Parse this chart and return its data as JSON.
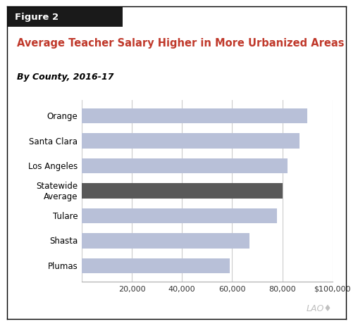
{
  "categories": [
    "Orange",
    "Santa Clara",
    "Los Angeles",
    "Statewide\nAverage",
    "Tulare",
    "Shasta",
    "Plumas"
  ],
  "values": [
    90000,
    87000,
    82000,
    80000,
    78000,
    67000,
    59000
  ],
  "bar_colors": [
    "#b8c0d8",
    "#b8c0d8",
    "#b8c0d8",
    "#595959",
    "#b8c0d8",
    "#b8c0d8",
    "#b8c0d8"
  ],
  "title": "Average Teacher Salary Higher in More Urbanized Areas",
  "subtitle": "By County, 2016-17",
  "figure_label": "Figure 2",
  "xlim": [
    0,
    100000
  ],
  "xticks": [
    0,
    20000,
    40000,
    60000,
    80000,
    100000
  ],
  "xtick_labels": [
    "",
    "20,000",
    "40,000",
    "60,000",
    "80,000",
    "$100,000"
  ],
  "title_color": "#c0392b",
  "subtitle_color": "#000000",
  "bar_height": 0.6,
  "background_color": "#ffffff",
  "grid_color": "#cccccc",
  "lao_text": "LAO♦",
  "figure_label_bg": "#1a1a1a",
  "figure_label_color": "#ffffff",
  "border_color": "#000000"
}
